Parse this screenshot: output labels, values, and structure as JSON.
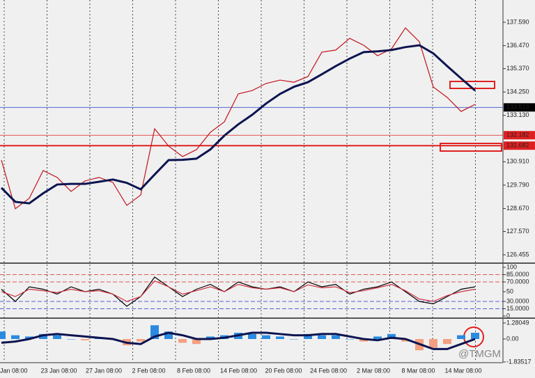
{
  "chart_data": [
    {
      "type": "line",
      "ylim": [
        126.088,
        138.657
      ],
      "yticks": [
        {
          "value": 137.59,
          "label": "137.590"
        },
        {
          "value": 136.47,
          "label": "136.470"
        },
        {
          "value": 135.37,
          "label": "135.370"
        },
        {
          "value": 134.25,
          "label": "134.250"
        },
        {
          "value": 133.13,
          "label": "133.130"
        },
        {
          "value": 130.91,
          "label": "130.910"
        },
        {
          "value": 129.79,
          "label": "129.790"
        },
        {
          "value": 128.67,
          "label": "128.670"
        },
        {
          "value": 127.57,
          "label": "127.570"
        },
        126.455
      ],
      "price_lines": [
        {
          "value": 133.513,
          "color": "#3a55d0",
          "label_bg": "#000000"
        },
        {
          "value": 132.182,
          "color": "#e02020",
          "label_bg": "#e02020"
        },
        {
          "value": 131.682,
          "color": "#e02020",
          "label_bg": "#e02020"
        }
      ],
      "x_labels": [
        "Jan 08:00",
        "23 Jan 08:00",
        "27 Jan 08:00",
        "2 Feb 08:00",
        "8 Feb 08:00",
        "14 Feb 08:00",
        "20 Feb 08:00",
        "24 Feb 08:00",
        "2 Mar 08:00",
        "8 Mar 08:00",
        "14 Mar 08:00"
      ],
      "series": [
        {
          "color": "#c0141c",
          "values": [
            130.99,
            128.66,
            129.16,
            130.49,
            130.16,
            129.49,
            129.99,
            130.16,
            129.92,
            128.82,
            129.32,
            132.49,
            131.66,
            131.16,
            131.49,
            132.32,
            132.82,
            134.16,
            134.32,
            134.66,
            134.82,
            134.72,
            134.99,
            136.16,
            136.26,
            136.82,
            136.49,
            135.99,
            136.32,
            137.32,
            136.66,
            134.49,
            133.99,
            133.32,
            133.66
          ]
        },
        {
          "color": "#0c1450",
          "values": [
            129.66,
            128.99,
            128.92,
            129.4,
            129.82,
            129.85,
            129.85,
            129.95,
            130.06,
            129.9,
            129.59,
            130.3,
            130.99,
            131.0,
            131.06,
            131.5,
            132.16,
            132.7,
            133.16,
            133.7,
            134.16,
            134.5,
            134.72,
            135.1,
            135.49,
            135.85,
            136.16,
            136.2,
            136.26,
            136.4,
            136.49,
            136.1,
            135.49,
            134.9,
            134.32
          ]
        }
      ]
    },
    {
      "type": "line",
      "ylim": [
        -2.86,
        105.7
      ],
      "yticks": [
        100,
        {
          "value": 85,
          "label": "85.0000"
        },
        {
          "value": 70,
          "label": "70.0000"
        },
        50,
        {
          "value": 30,
          "label": "30.0000"
        },
        {
          "value": 15,
          "label": "15.0000"
        },
        0
      ],
      "series": [
        {
          "color": "#000000",
          "values": [
            55,
            30,
            60,
            55,
            45,
            60,
            50,
            55,
            45,
            20,
            40,
            80,
            60,
            40,
            55,
            65,
            50,
            70,
            60,
            55,
            60,
            50,
            70,
            60,
            65,
            45,
            55,
            60,
            70,
            50,
            30,
            25,
            40,
            55,
            60
          ]
        },
        {
          "color": "#d03040",
          "values": [
            50,
            40,
            55,
            52,
            48,
            55,
            50,
            52,
            45,
            30,
            40,
            72,
            60,
            45,
            52,
            60,
            50,
            65,
            58,
            55,
            58,
            50,
            64,
            58,
            60,
            48,
            52,
            58,
            65,
            52,
            35,
            30,
            42,
            50,
            55
          ]
        }
      ]
    },
    {
      "type": "histogram-line",
      "ylim": [
        -1.948,
        1.558
      ],
      "yticks": [
        1.28049,
        {
          "value": 0,
          "label": "0.00"
        },
        -1.83517
      ],
      "series": [
        {
          "color": "#2a8ae0",
          "negative_color": "#f4a080",
          "values": [
            0.6,
            0.3,
            0.2,
            0.4,
            0.3,
            0,
            -0.1,
            0.1,
            0,
            -0.5,
            -0.2,
            1.1,
            0.6,
            -0.3,
            -0.4,
            0.2,
            0.3,
            0.5,
            0.4,
            0.3,
            0.2,
            0,
            0.4,
            0.3,
            0.3,
            0,
            -0.2,
            0.2,
            0.4,
            -0.2,
            -0.9,
            -0.7,
            -0.4,
            0.3,
            0.5
          ]
        },
        {
          "color": "#0c1450",
          "values": [
            -0.3,
            -0.2,
            0,
            0.3,
            0.4,
            0.3,
            0.2,
            0.1,
            0,
            -0.3,
            -0.4,
            0.2,
            0.5,
            0.3,
            0,
            0,
            0.1,
            0.3,
            0.5,
            0.5,
            0.4,
            0.3,
            0.3,
            0.4,
            0.4,
            0.2,
            0,
            -0.1,
            0.1,
            0,
            -0.4,
            -0.8,
            -0.8,
            -0.4,
            0
          ]
        }
      ]
    }
  ],
  "watermark": "@TMGM"
}
